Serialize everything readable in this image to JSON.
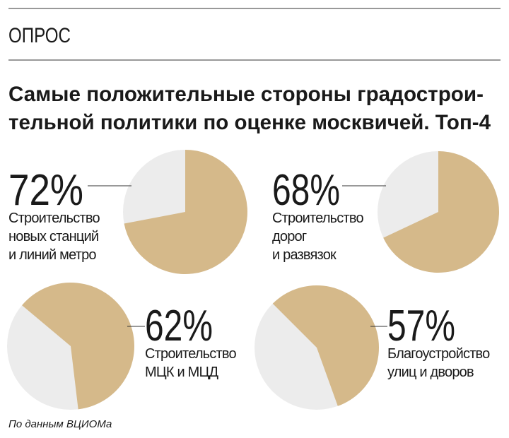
{
  "header": "ОПРОС",
  "title": [
    "Самые положительные стороны градострои-",
    "тельной политики по оценке москвичей. Топ-4"
  ],
  "source": "По данным ВЦИОМа",
  "chart_data": [
    {
      "type": "pie",
      "values": [
        72
      ],
      "value_labels": [
        "72%"
      ],
      "label": [
        "Строительство",
        "новых станций",
        "и линий метро"
      ],
      "color": "#d5b98a"
    },
    {
      "type": "pie",
      "values": [
        68
      ],
      "value_labels": [
        "68%"
      ],
      "label": [
        "Строительство",
        "дорог",
        "и развязок"
      ],
      "color": "#d5b98a"
    },
    {
      "type": "pie",
      "values": [
        62
      ],
      "value_labels": [
        "62%"
      ],
      "label": [
        "Строительство",
        "МЦК и МЦД"
      ],
      "color": "#d5b98a"
    },
    {
      "type": "pie",
      "values": [
        57
      ],
      "value_labels": [
        "57%"
      ],
      "label": [
        "Благоустройство",
        "улиц и дворов"
      ],
      "color": "#d5b98a"
    }
  ]
}
